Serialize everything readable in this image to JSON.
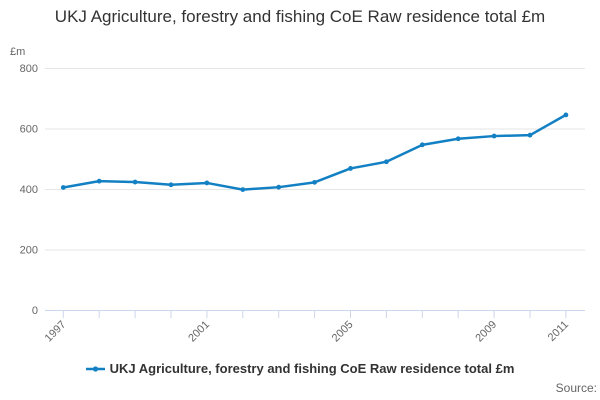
{
  "title": "UKJ Agriculture, forestry and fishing CoE Raw residence total £m",
  "colors": {
    "accent": "#1380c4",
    "grid": "#e6e6e6",
    "axis": "#ccd6eb",
    "tick_text": "#666666",
    "title_text": "#333333"
  },
  "chart_data": {
    "type": "line",
    "title": "UKJ Agriculture, forestry and fishing CoE Raw residence total £m",
    "xlabel": "",
    "ylabel": "£m",
    "ylim": [
      0,
      800
    ],
    "yticks": [
      0,
      200,
      400,
      600,
      800
    ],
    "categories": [
      "1997",
      "1998",
      "1999",
      "2000",
      "2001",
      "2002",
      "2003",
      "2004",
      "2005",
      "2006",
      "2007",
      "2008",
      "2009",
      "2010",
      "2011"
    ],
    "x_shown_ticks": [
      "1997",
      "2001",
      "2005",
      "2009",
      "2011"
    ],
    "series": [
      {
        "name": "UKJ Agriculture, forestry and fishing CoE Raw residence total £m",
        "values": [
          405,
          426,
          423,
          414,
          420,
          398,
          406,
          422,
          468,
          490,
          546,
          566,
          575,
          578,
          645
        ]
      }
    ],
    "grid": true,
    "legend_position": "bottom"
  },
  "legend": {
    "label": "UKJ Agriculture, forestry and fishing CoE Raw residence total £m"
  },
  "footer": {
    "source": "Source:"
  }
}
